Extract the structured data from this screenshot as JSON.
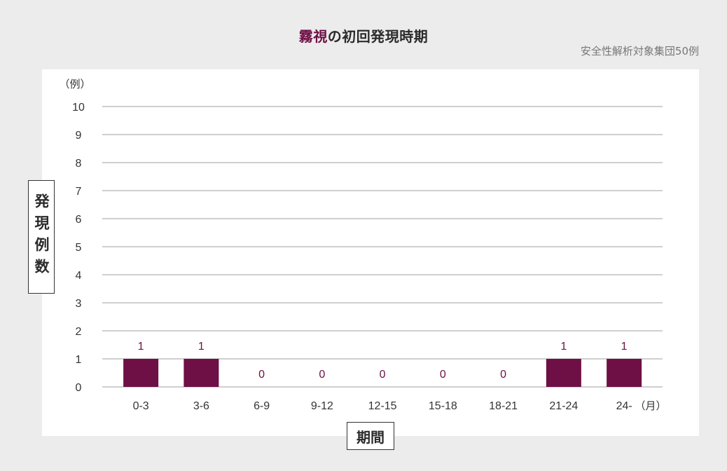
{
  "title": {
    "accent_text": "霧視",
    "rest_text": "の初回発現時期"
  },
  "subtitle": "安全性解析対象集団50例",
  "colors": {
    "bar": "#6e0f45",
    "bar_label": "#6e0f45",
    "grid": "#bfbfbf",
    "axis_text": "#333333",
    "background": "#ececec",
    "panel": "#ffffff"
  },
  "chart_data": {
    "type": "bar",
    "title": "霧視の初回発現時期",
    "subtitle": "安全性解析対象集団50例",
    "categories": [
      "0-3",
      "3-6",
      "6-9",
      "9-12",
      "12-15",
      "15-18",
      "18-21",
      "21-24",
      "24-"
    ],
    "values": [
      1,
      1,
      0,
      0,
      0,
      0,
      0,
      1,
      1
    ],
    "xlabel": "期間",
    "x_unit": "（月）",
    "ylabel": "発現例数",
    "y_unit": "（例）",
    "ylim": [
      0,
      10
    ],
    "yticks": [
      0,
      1,
      2,
      3,
      4,
      5,
      6,
      7,
      8,
      9,
      10
    ],
    "grid": true,
    "data_labels": true
  }
}
